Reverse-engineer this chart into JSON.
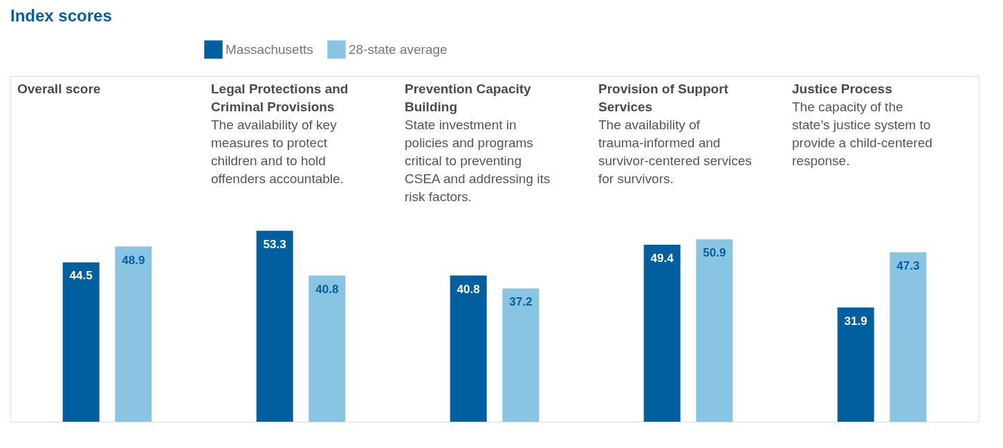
{
  "chart_data": {
    "type": "bar",
    "title": "Index scores",
    "categories": [
      "Overall score",
      "Legal Protections and Criminal Provisions",
      "Prevention Capacity Building",
      "Provision of Support Services",
      "Justice Process"
    ],
    "series": [
      {
        "name": "Massachusetts",
        "color": "#005f9e",
        "values": [
          44.5,
          53.3,
          40.8,
          49.4,
          31.9
        ]
      },
      {
        "name": "28-state average",
        "color": "#8ac4e3",
        "values": [
          48.9,
          40.8,
          37.2,
          50.9,
          47.3
        ]
      }
    ],
    "annotations": [
      "The availability of key measures to protect children and to hold offenders accountable.",
      "State investment in policies and programs critical to preventing CSEA and addressing its risk factors.",
      "The availability of trauma-informed and survivor-centered services for survivors.",
      "The capacity of the state’s justice system to provide a child-centered response."
    ],
    "data_labels": true,
    "legend": "top left",
    "grid": false
  }
}
